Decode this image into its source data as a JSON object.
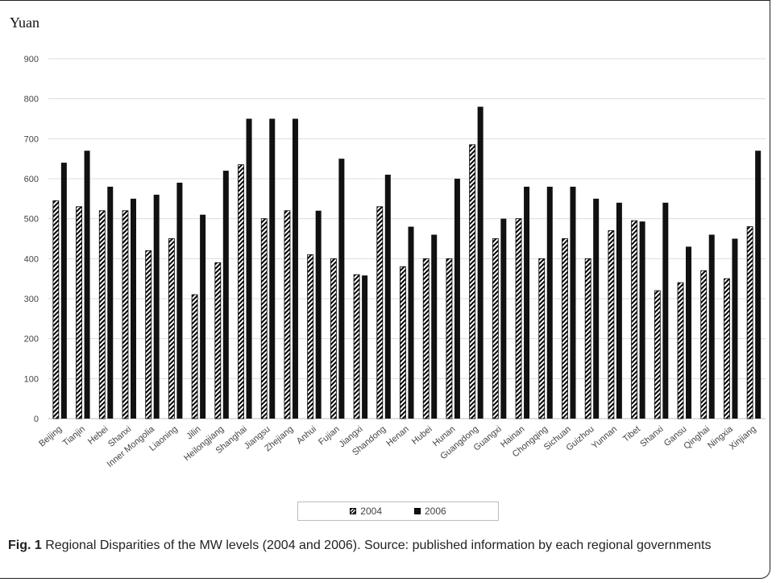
{
  "chart_data": {
    "type": "bar",
    "ylabel": "Yuan",
    "ylim": [
      0,
      900
    ],
    "yticks": [
      0,
      100,
      200,
      300,
      400,
      500,
      600,
      700,
      800,
      900
    ],
    "grid": true,
    "legend_position": "bottom",
    "categories": [
      "Beijing",
      "Tianjin",
      "Hebei",
      "Shanxi",
      "Inner Mongolia",
      "Liaoning",
      "Jilin",
      "Heilongjiang",
      "Shanghai",
      "Jiangsu",
      "Zhejiang",
      "Anhui",
      "Fujian",
      "Jiangxi",
      "Shandong",
      "Henan",
      "Hubei",
      "Hunan",
      "Guangdong",
      "Guangxi",
      "Hainan",
      "Chongqing",
      "Sichuan",
      "Guizhou",
      "Yunnan",
      "Tibet",
      "Shanxi",
      "Gansu",
      "Qinghai",
      "Ningxia",
      "Xinjiang"
    ],
    "series": [
      {
        "name": "2004",
        "style": "hatched",
        "color": "#000000",
        "values": [
          545,
          530,
          520,
          520,
          420,
          450,
          310,
          390,
          635,
          500,
          520,
          410,
          400,
          360,
          530,
          380,
          400,
          400,
          685,
          450,
          500,
          400,
          450,
          400,
          470,
          495,
          320,
          340,
          370,
          350,
          480
        ]
      },
      {
        "name": "2006",
        "style": "solid",
        "color": "#111111",
        "values": [
          640,
          670,
          580,
          550,
          560,
          590,
          510,
          620,
          750,
          750,
          750,
          520,
          650,
          358,
          610,
          480,
          460,
          600,
          780,
          500,
          580,
          580,
          580,
          550,
          540,
          493,
          540,
          430,
          460,
          450,
          670
        ]
      }
    ]
  },
  "caption": {
    "label": "Fig. 1",
    "text": " Regional Disparities of the MW levels (2004 and 2006). Source: published information by each regional governments"
  }
}
